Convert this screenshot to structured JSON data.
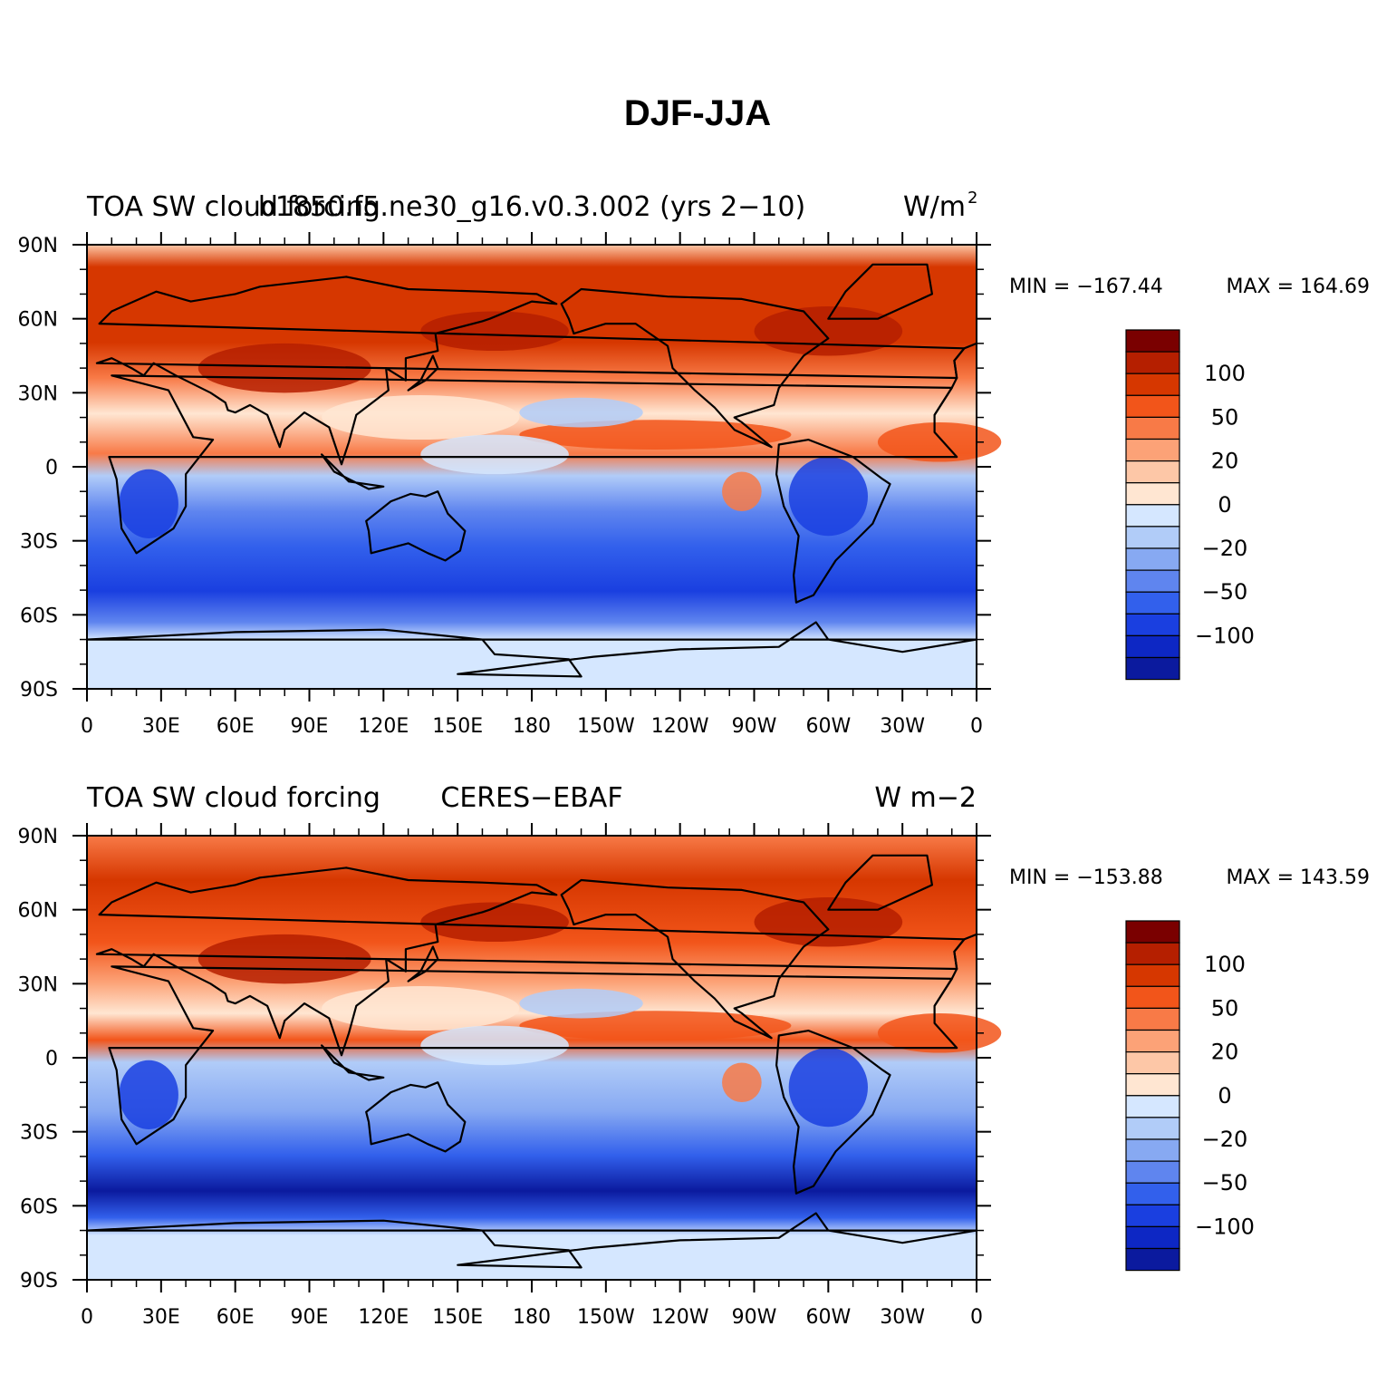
{
  "figure": {
    "title": "DJF-JJA"
  },
  "chart_data": [
    {
      "type": "heatmap",
      "left_title": "TOA SW cloud forcing",
      "center_title": "b1850.f5.ne30_g16.v0.3.002 (yrs 2−10)",
      "right_title": "W/m",
      "right_title_sup": "2",
      "min_label": "MIN = −167.44",
      "max_label": "MAX = 164.69",
      "min": -167.44,
      "max": 164.69,
      "xlim": [
        0,
        360
      ],
      "ylim": [
        -90,
        90
      ],
      "x_tick_labels": [
        "0",
        "30E",
        "60E",
        "90E",
        "120E",
        "150E",
        "180",
        "150W",
        "120W",
        "90W",
        "60W",
        "30W",
        "0"
      ],
      "y_tick_labels": [
        "90N",
        "60N",
        "30N",
        "0",
        "30S",
        "60S",
        "90S"
      ]
    },
    {
      "type": "heatmap",
      "left_title": "TOA SW cloud forcing",
      "center_title": "CERES−EBAF",
      "right_title": "W m−2",
      "right_title_sup": "",
      "min_label": "MIN = −153.88",
      "max_label": "MAX = 143.59",
      "min": -153.88,
      "max": 143.59,
      "xlim": [
        0,
        360
      ],
      "ylim": [
        -90,
        90
      ],
      "x_tick_labels": [
        "0",
        "30E",
        "60E",
        "90E",
        "120E",
        "150E",
        "180",
        "150W",
        "120W",
        "90W",
        "60W",
        "30W",
        "0"
      ],
      "y_tick_labels": [
        "90N",
        "60N",
        "30N",
        "0",
        "30S",
        "60S",
        "90S"
      ]
    }
  ],
  "colorbar": {
    "labels": [
      "100",
      "50",
      "20",
      "0",
      "−20",
      "−50",
      "−100"
    ],
    "colors": [
      "#7a0000",
      "#b51f00",
      "#d63700",
      "#f2551a",
      "#f87a47",
      "#fca277",
      "#fdc7a7",
      "#ffe6d2",
      "#d5e7ff",
      "#b1ccf8",
      "#87a9f2",
      "#5f85ef",
      "#3260ec",
      "#1a3fe0",
      "#0d27c4",
      "#0b1a9e"
    ]
  },
  "colors": {
    "land_outline": "#000000"
  }
}
